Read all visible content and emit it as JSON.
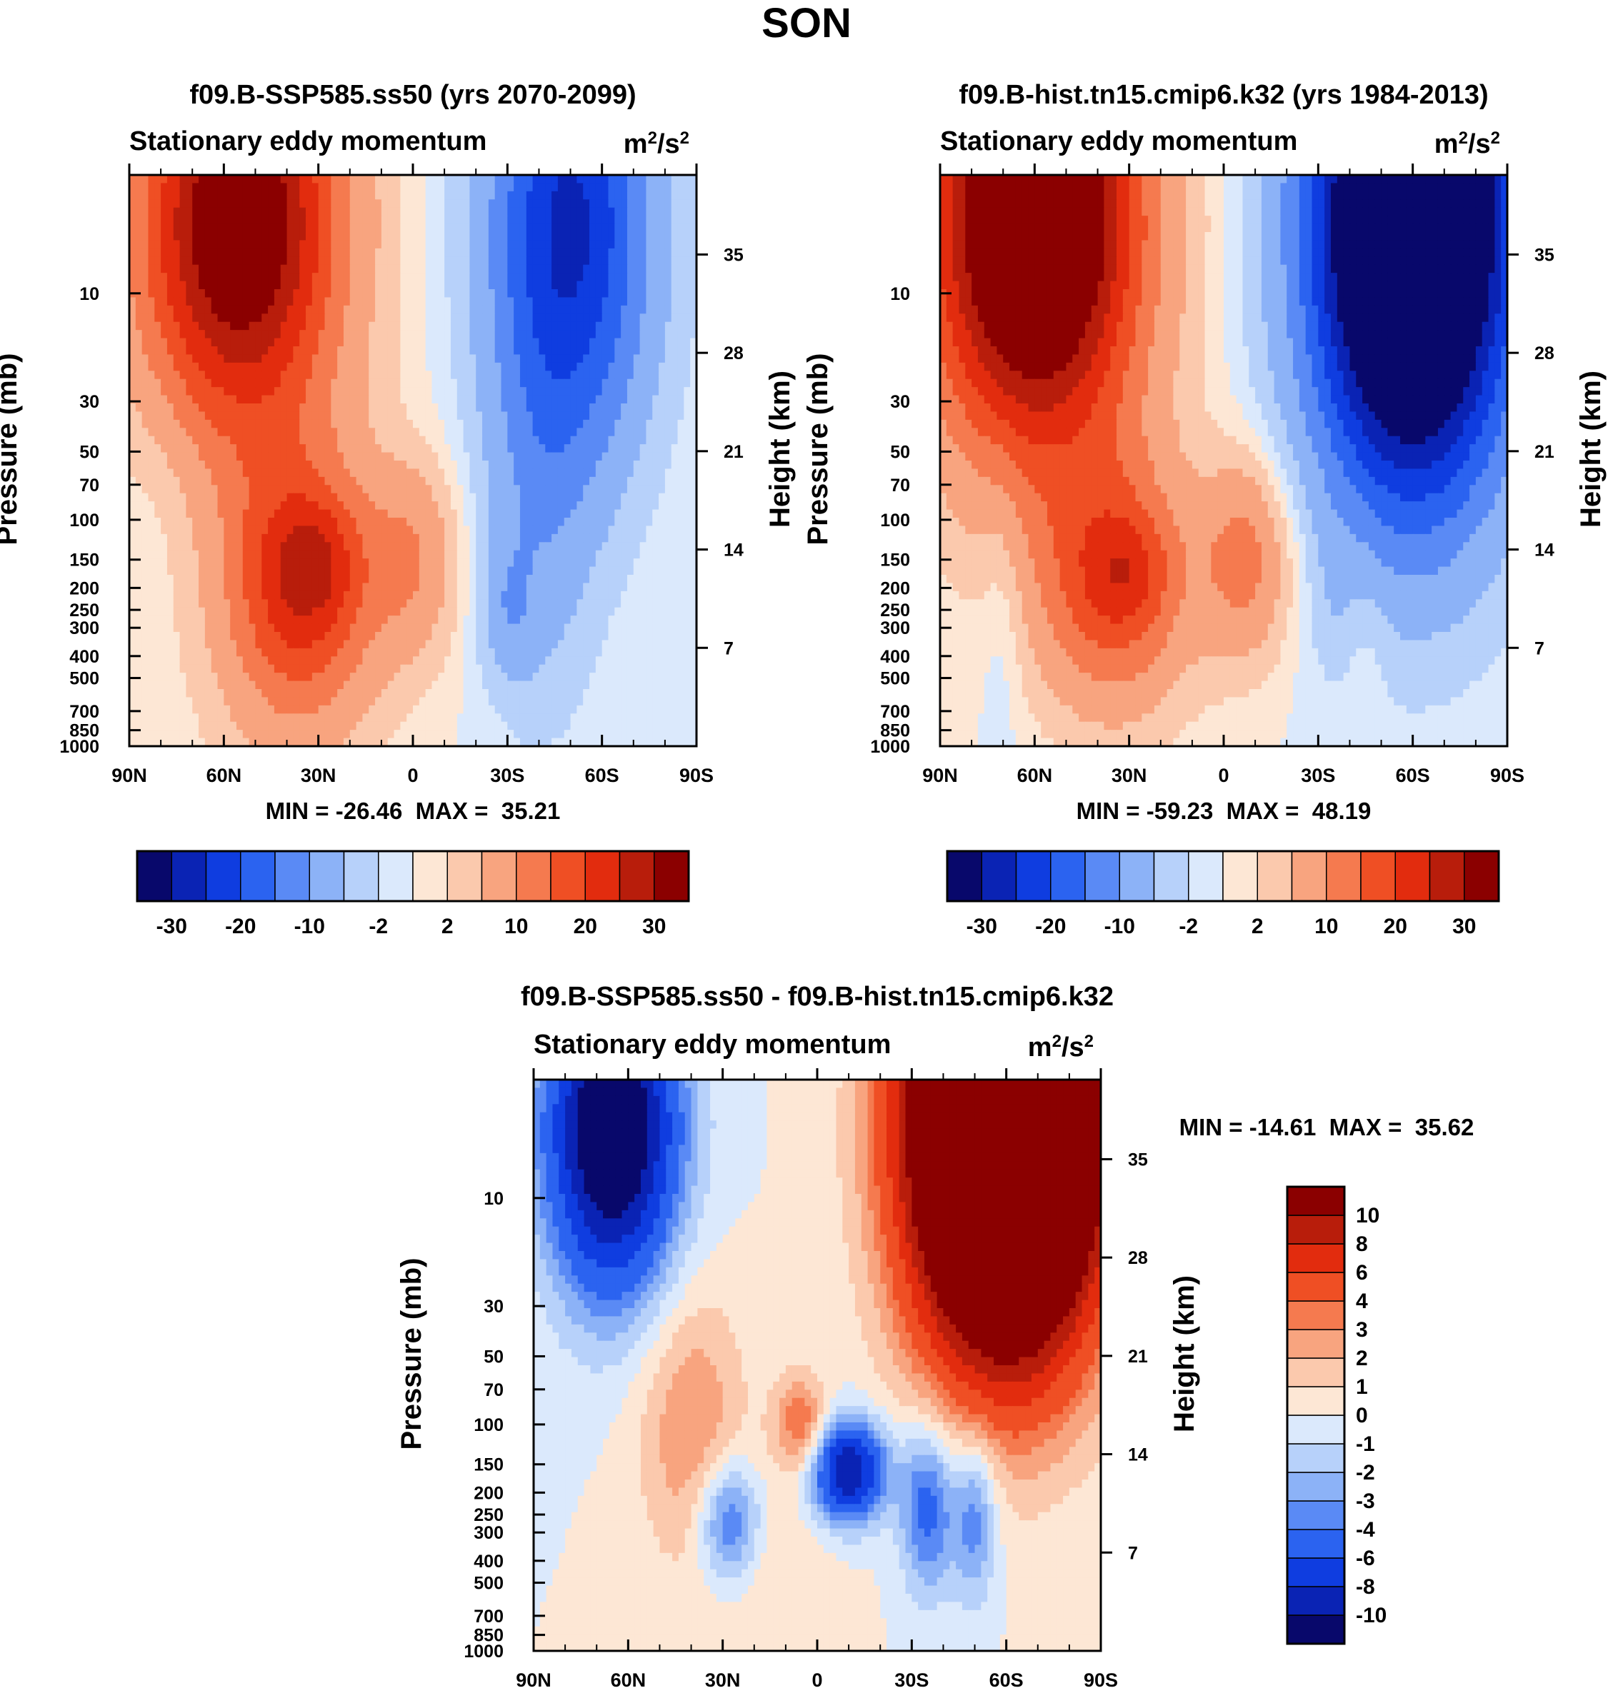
{
  "figure": {
    "title": "SON"
  },
  "chart_data": [
    {
      "type": "heatmap",
      "id": "top-left",
      "title": "f09.B-SSP585.ss50 (yrs 2070-2099)",
      "subtitle": "Stationary eddy momentum",
      "units_base": "m",
      "units_exp1": "2",
      "units_mid": "/s",
      "units_exp2": "2",
      "xlabel": "",
      "ylabel": "Pressure (mb)",
      "ylabel_right": "Height (km)",
      "x_ticks": [
        "90N",
        "60N",
        "30N",
        "0",
        "30S",
        "60S",
        "90S"
      ],
      "x_tick_values": [
        90,
        60,
        30,
        0,
        -30,
        -60,
        -90
      ],
      "xlim": [
        90,
        -90
      ],
      "y_ticks": [
        "10",
        "30",
        "50",
        "70",
        "100",
        "150",
        "200",
        "250",
        "300",
        "400",
        "500",
        "700",
        "850",
        "1000"
      ],
      "y_tick_values": [
        10,
        30,
        50,
        70,
        100,
        150,
        200,
        250,
        300,
        400,
        500,
        700,
        850,
        1000
      ],
      "ylim": [
        3,
        1000
      ],
      "height_ticks": [
        "35",
        "28",
        "21",
        "14",
        "7"
      ],
      "height_tick_values": [
        35,
        28,
        21,
        14,
        7
      ],
      "stats": "MIN = -26.46  MAX =  35.21",
      "colorbar": {
        "orientation": "horizontal",
        "colors": [
          "#08086b",
          "#0a23b4",
          "#0f3de0",
          "#2b63f0",
          "#5a8af5",
          "#8cb2f7",
          "#b7d1fa",
          "#dbe9fc",
          "#fde7d5",
          "#fbc9ad",
          "#f8a47f",
          "#f57a4f",
          "#ef4f24",
          "#e22c0e",
          "#b81d0b",
          "#8b0000"
        ],
        "labels": [
          "-30",
          "-20",
          "-10",
          "-2",
          "2",
          "10",
          "20",
          "30"
        ],
        "label_boundaries": [
          1,
          3,
          5,
          7,
          9,
          11,
          13,
          15
        ]
      },
      "blobs": [
        {
          "lat": 55,
          "p": 5,
          "rlat": 22,
          "rp": 1.5,
          "v": 38
        },
        {
          "lat": 35,
          "p": 190,
          "rlat": 16,
          "rp": 0.9,
          "v": 20
        },
        {
          "lat": 30,
          "p": 150,
          "rlat": 9,
          "rp": 0.4,
          "v": 6
        },
        {
          "lat": 0,
          "p": 150,
          "rlat": 10,
          "rp": 0.7,
          "v": 9
        },
        {
          "lat": 40,
          "p": 400,
          "rlat": 20,
          "rp": 1.2,
          "v": 4
        },
        {
          "lat": -50,
          "p": 5,
          "rlat": 18,
          "rp": 1.7,
          "v": -26
        },
        {
          "lat": -40,
          "p": 100,
          "rlat": 12,
          "rp": 1.5,
          "v": -6
        },
        {
          "lat": -30,
          "p": 250,
          "rlat": 6,
          "rp": 0.5,
          "v": -6
        },
        {
          "lat": 78,
          "p": 60,
          "rlat": 10,
          "rp": 0.8,
          "v": -1.5
        }
      ]
    },
    {
      "type": "heatmap",
      "id": "top-right",
      "title": "f09.B-hist.tn15.cmip6.k32 (yrs 1984-2013)",
      "subtitle": "Stationary eddy momentum",
      "units_base": "m",
      "units_exp1": "2",
      "units_mid": "/s",
      "units_exp2": "2",
      "xlabel": "",
      "ylabel": "Pressure (mb)",
      "ylabel_right": "Height (km)",
      "x_ticks": [
        "90N",
        "60N",
        "30N",
        "0",
        "30S",
        "60S",
        "90S"
      ],
      "x_tick_values": [
        90,
        60,
        30,
        0,
        -30,
        -60,
        -90
      ],
      "xlim": [
        90,
        -90
      ],
      "y_ticks": [
        "10",
        "30",
        "50",
        "70",
        "100",
        "150",
        "200",
        "250",
        "300",
        "400",
        "500",
        "700",
        "850",
        "1000"
      ],
      "y_tick_values": [
        10,
        30,
        50,
        70,
        100,
        150,
        200,
        250,
        300,
        400,
        500,
        700,
        850,
        1000
      ],
      "ylim": [
        3,
        1000
      ],
      "height_ticks": [
        "35",
        "28",
        "21",
        "14",
        "7"
      ],
      "height_tick_values": [
        35,
        28,
        21,
        14,
        7
      ],
      "stats": "MIN = -59.23  MAX =  48.19",
      "colorbar": {
        "orientation": "horizontal",
        "colors": [
          "#08086b",
          "#0a23b4",
          "#0f3de0",
          "#2b63f0",
          "#5a8af5",
          "#8cb2f7",
          "#b7d1fa",
          "#dbe9fc",
          "#fde7d5",
          "#fbc9ad",
          "#f8a47f",
          "#f57a4f",
          "#ef4f24",
          "#e22c0e",
          "#b81d0b",
          "#8b0000"
        ],
        "labels": [
          "-30",
          "-20",
          "-10",
          "-2",
          "2",
          "10",
          "20",
          "30"
        ],
        "label_boundaries": [
          1,
          3,
          5,
          7,
          9,
          11,
          13,
          15
        ]
      },
      "blobs": [
        {
          "lat": 60,
          "p": 5,
          "rlat": 23,
          "rp": 1.6,
          "v": 48
        },
        {
          "lat": 35,
          "p": 190,
          "rlat": 17,
          "rp": 0.9,
          "v": 18
        },
        {
          "lat": 30,
          "p": 170,
          "rlat": 9,
          "rp": 0.4,
          "v": 6
        },
        {
          "lat": -7,
          "p": 150,
          "rlat": 10,
          "rp": 0.7,
          "v": 12
        },
        {
          "lat": -60,
          "p": 5,
          "rlat": 22,
          "rp": 1.9,
          "v": -59
        },
        {
          "lat": 70,
          "p": 200,
          "rlat": 5,
          "rp": 1.1,
          "v": -3
        },
        {
          "lat": -35,
          "p": 250,
          "rlat": 5,
          "rp": 0.5,
          "v": -2
        },
        {
          "lat": -45,
          "p": 300,
          "rlat": 5,
          "rp": 0.7,
          "v": 2
        }
      ]
    },
    {
      "type": "heatmap",
      "id": "bottom-diff",
      "title": "f09.B-SSP585.ss50 - f09.B-hist.tn15.cmip6.k32",
      "subtitle": "Stationary eddy momentum",
      "units_base": "m",
      "units_exp1": "2",
      "units_mid": "/s",
      "units_exp2": "2",
      "xlabel": "",
      "ylabel": "Pressure (mb)",
      "ylabel_right": "Height (km)",
      "x_ticks": [
        "90N",
        "60N",
        "30N",
        "0",
        "30S",
        "60S",
        "90S"
      ],
      "x_tick_values": [
        90,
        60,
        30,
        0,
        -30,
        -60,
        -90
      ],
      "xlim": [
        90,
        -90
      ],
      "y_ticks": [
        "10",
        "30",
        "50",
        "70",
        "100",
        "150",
        "200",
        "250",
        "300",
        "400",
        "500",
        "700",
        "850",
        "1000"
      ],
      "y_tick_values": [
        10,
        30,
        50,
        70,
        100,
        150,
        200,
        250,
        300,
        400,
        500,
        700,
        850,
        1000
      ],
      "ylim": [
        3,
        1000
      ],
      "height_ticks": [
        "35",
        "28",
        "21",
        "14",
        "7"
      ],
      "height_tick_values": [
        35,
        28,
        21,
        14,
        7
      ],
      "stats": "MIN = -14.61  MAX =  35.62",
      "colorbar": {
        "orientation": "vertical",
        "colors": [
          "#08086b",
          "#0a23b4",
          "#0f3de0",
          "#2b63f0",
          "#5a8af5",
          "#8cb2f7",
          "#b7d1fa",
          "#dbe9fc",
          "#fde7d5",
          "#fbc9ad",
          "#f8a47f",
          "#f57a4f",
          "#ef4f24",
          "#e22c0e",
          "#b81d0b",
          "#8b0000"
        ],
        "labels": [
          "-10",
          "-8",
          "-6",
          "-4",
          "-3",
          "-2",
          "-1",
          "0",
          "1",
          "2",
          "3",
          "4",
          "6",
          "8",
          "10"
        ],
        "label_boundaries": [
          1,
          2,
          3,
          4,
          5,
          6,
          7,
          8,
          9,
          10,
          11,
          12,
          13,
          14,
          15
        ]
      },
      "blobs": [
        {
          "lat": -60,
          "p": 5,
          "rlat": 20,
          "rp": 1.5,
          "v": 35
        },
        {
          "lat": 65,
          "p": 5,
          "rlat": 14,
          "rp": 1.1,
          "v": -14
        },
        {
          "lat": 40,
          "p": 100,
          "rlat": 12,
          "rp": 1.0,
          "v": 3
        },
        {
          "lat": 5,
          "p": 100,
          "rlat": 6,
          "rp": 0.35,
          "v": 4
        },
        {
          "lat": -10,
          "p": 160,
          "rlat": 8,
          "rp": 0.35,
          "v": -10
        },
        {
          "lat": -35,
          "p": 230,
          "rlat": 6,
          "rp": 0.6,
          "v": -5
        },
        {
          "lat": -50,
          "p": 250,
          "rlat": 5,
          "rp": 0.6,
          "v": -4
        },
        {
          "lat": 28,
          "p": 270,
          "rlat": 7,
          "rp": 0.45,
          "v": -5
        },
        {
          "lat": 15,
          "p": 500,
          "rlat": 14,
          "rp": 0.8,
          "v": 1
        }
      ]
    }
  ]
}
